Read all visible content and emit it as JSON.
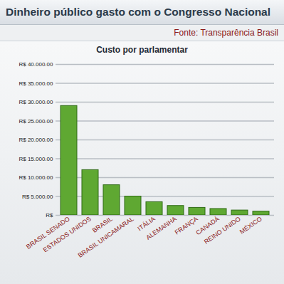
{
  "chart_data": {
    "type": "bar",
    "title": "Dinheiro público gasto com o Congresso Nacional",
    "subtitle": "Fonte: Transparência Brasil",
    "ylabel": "Custo por parlamentar",
    "categories": [
      "BRASIL SENADO",
      "ESTADOS UNIDOS",
      "BRASIL",
      "BRASIL UNICAMARAL",
      "ITÁLIA",
      "ALEMANHA",
      "FRANÇA",
      "CANADÁ",
      "REINO UNIDO",
      "MÉXICO"
    ],
    "values": [
      29000,
      12000,
      8000,
      5000,
      3500,
      2500,
      2000,
      1700,
      1300,
      1000
    ],
    "color": "#5fa832",
    "ylim": [
      0,
      40000
    ],
    "yticks": [
      {
        "value": 0,
        "label": "R$"
      },
      {
        "value": 5000,
        "label": "R$ 5.000.00"
      },
      {
        "value": 10000,
        "label": "R$ 10.000.00"
      },
      {
        "value": 15000,
        "label": "R$ 15.000.00"
      },
      {
        "value": 20000,
        "label": "R$ 20.000.00"
      },
      {
        "value": 25000,
        "label": "R$ 25.000.00"
      },
      {
        "value": 30000,
        "label": "R$ 30.000.00"
      },
      {
        "value": 35000,
        "label": "R$ 35.000.00"
      },
      {
        "value": 40000,
        "label": "R$ 40.000.00"
      }
    ],
    "grid": true
  }
}
